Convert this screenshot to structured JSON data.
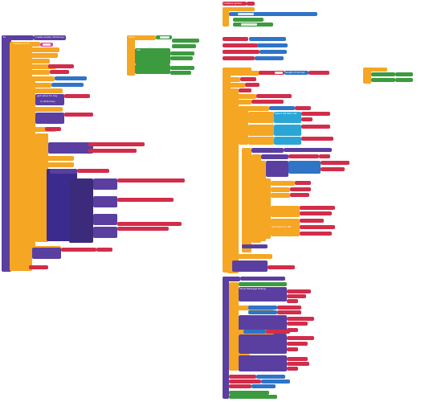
{
  "workspace": {
    "background_color": "#ffffff"
  },
  "colors": {
    "procedure": "#5b3fa0",
    "control": "#f5a623",
    "logic": "#3c9b3f",
    "variable": "#d22d4a",
    "math": "#2f74c7",
    "text": "#e24a8b",
    "list": "#2aa6d6"
  },
  "labels": {
    "left_proc_title": "to",
    "left_dict": "create empty dictionary",
    "left_init": "initialize local",
    "left_get_value": "get value for key",
    "left_in_dict": "in dictionary",
    "left_not_found": "or if not found",
    "left_do": "do",
    "mid_event": "when",
    "mid_set": "set",
    "mid_to": "to",
    "right_init_global": "initialize global",
    "right_create_empty_list": "create empty list",
    "right_length": "length of list list",
    "right_select": "select list item list",
    "right_index": "index",
    "right_add_items": "add items to list",
    "right_message": "message",
    "right_title": "title",
    "right_button": "button text",
    "right_show_msg": "Show Message Dialog"
  }
}
